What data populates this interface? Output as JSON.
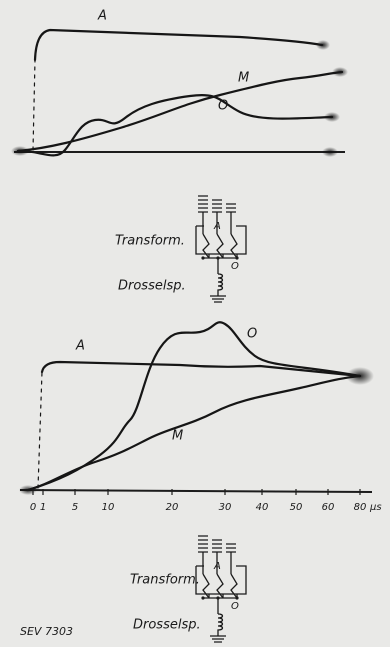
{
  "figure_top": {
    "curve_labels": [
      "A",
      "M",
      "O"
    ],
    "circuit": {
      "label_transformer": "Transform.",
      "label_choke": "Drosselsp.",
      "node_labels": [
        "A",
        "O"
      ]
    }
  },
  "figure_bottom": {
    "curve_labels": [
      "A",
      "O",
      "M"
    ],
    "x_axis": {
      "tick_labels": [
        "0",
        "1",
        "5",
        "10",
        "20",
        "30",
        "40",
        "50",
        "60",
        "80"
      ],
      "unit": "µs"
    },
    "circuit": {
      "label_transformer": "Transform.",
      "label_choke": "Drosselsp.",
      "node_labels": [
        "A",
        "O"
      ]
    }
  },
  "footer": "SEV 7303"
}
